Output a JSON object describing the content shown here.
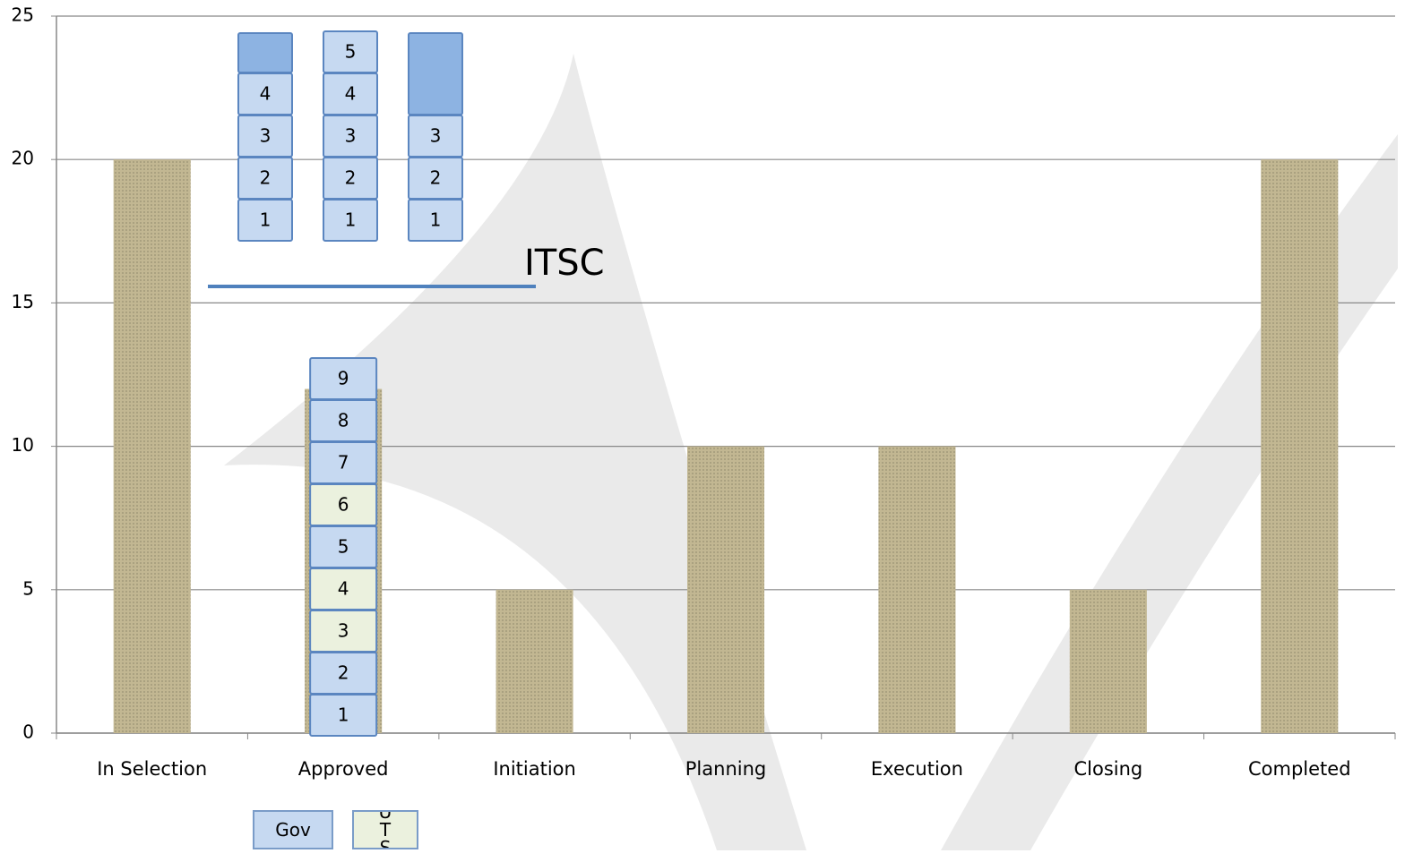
{
  "chart_data": {
    "type": "bar",
    "categories": [
      "In Selection",
      "Approved",
      "Initiation",
      "Planning",
      "Execution",
      "Closing",
      "Completed"
    ],
    "values": [
      20,
      12,
      5,
      10,
      10,
      5,
      20
    ],
    "color": "#ad9f6e",
    "ylim": [
      0,
      25
    ],
    "yticks": [
      0,
      5,
      10,
      15,
      20,
      25
    ],
    "grid": true,
    "annotation": "ITSC",
    "queue_groups": [
      {
        "name": "Gov",
        "color": "#c6d9f1"
      },
      {
        "name": "UTS",
        "color": "#ebf1de"
      }
    ],
    "approved_queue": [
      {
        "label": 1,
        "group": "Gov"
      },
      {
        "label": 2,
        "group": "Gov"
      },
      {
        "label": 3,
        "group": "UTS"
      },
      {
        "label": 4,
        "group": "UTS"
      },
      {
        "label": 5,
        "group": "Gov"
      },
      {
        "label": 6,
        "group": "UTS"
      },
      {
        "label": 7,
        "group": "Gov"
      },
      {
        "label": 8,
        "group": "Gov"
      },
      {
        "label": 9,
        "group": "Gov"
      }
    ],
    "itsc_stacks": [
      [
        1,
        2,
        3,
        4,
        null
      ],
      [
        1,
        2,
        3,
        4,
        5
      ],
      [
        1,
        2,
        3,
        null
      ]
    ]
  }
}
